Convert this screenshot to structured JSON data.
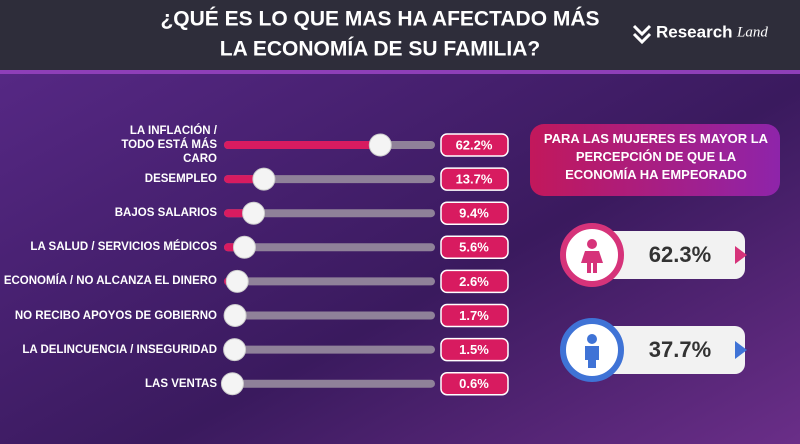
{
  "logo": [
    "Research",
    "Land"
  ],
  "chart_data": [
    {
      "type": "slider",
      "title": [
        "¿QUÉ ES LO QUE MAS HA AFECTADO MÁS",
        "LA ECONOMÍA DE SU FAMILIA?"
      ],
      "categories": [
        "LA INFLACIÓN / TODO ESTÁ MÁS CARO",
        "DESEMPLEO",
        "BAJOS SALARIOS",
        "LA SALUD / SERVICIOS MÉDICOS",
        "ECONOMÍA / NO ALCANZA EL DINERO",
        "NO RECIBO APOYOS DE GOBIERNO",
        "LA DELINCUENCIA / INSEGURIDAD",
        "LAS VENTAS"
      ],
      "values": [
        62.2,
        13.7,
        9.4,
        5.6,
        2.6,
        1.7,
        1.5,
        0.6
      ],
      "value_labels": [
        "62.2%",
        "13.7%",
        "9.4%",
        "5.6%",
        "2.6%",
        "1.7%",
        "1.5%",
        "0.6%"
      ],
      "color": "#d81b60",
      "xlim": [
        0,
        85
      ]
    },
    {
      "type": "stat",
      "title": "PARA LAS MUJERES ES MAYOR LA PERCEPCIÓN DE QUE LA ECONOMÍA HA EMPEORADO",
      "categories": [
        null,
        null
      ],
      "values": [
        62.3,
        37.7
      ],
      "value_labels": [
        "62.3%",
        "37.7%"
      ],
      "colors": [
        "#d6337a",
        "#3f73d6"
      ]
    }
  ]
}
